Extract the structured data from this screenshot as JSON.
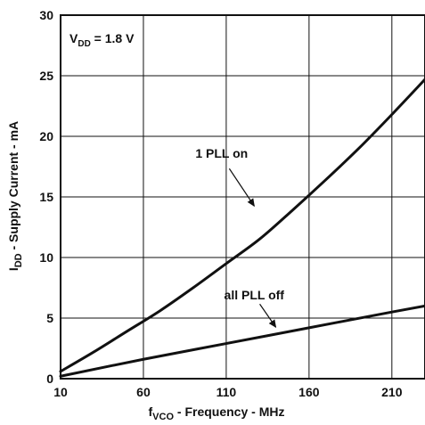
{
  "chart_data": {
    "type": "line",
    "x_ticks": [
      "10",
      "60",
      "110",
      "160",
      "210"
    ],
    "y_ticks": [
      "0",
      "5",
      "10",
      "15",
      "20",
      "25",
      "30"
    ],
    "xlim": [
      10,
      230
    ],
    "ylim": [
      0,
      30
    ],
    "grid": true,
    "xlabel": {
      "main": "f",
      "sub": "VCO",
      "rest": " - Frequency - MHz"
    },
    "ylabel": {
      "main": "I",
      "sub": "DD",
      "rest": " - Supply Current - mA"
    },
    "annotation_box": {
      "main": "V",
      "sub": "DD",
      "rest": " = 1.8 V"
    },
    "series": [
      {
        "name": "1 PLL on",
        "x": [
          10,
          30,
          50,
          70,
          90,
          110,
          130,
          150,
          170,
          190,
          210,
          230
        ],
        "y": [
          0.6,
          2.2,
          3.9,
          5.6,
          7.5,
          9.5,
          11.5,
          13.9,
          16.4,
          19.0,
          21.8,
          24.7
        ]
      },
      {
        "name": "all PLL off",
        "x": [
          10,
          60,
          110,
          160,
          210,
          230
        ],
        "y": [
          0.2,
          1.6,
          2.9,
          4.2,
          5.5,
          6.0
        ]
      }
    ],
    "labels": [
      {
        "text": "1 PLL on",
        "series": 0,
        "at_x": 128,
        "at_y": 14.1
      },
      {
        "text": "all PLL off",
        "series": 1,
        "at_x": 141,
        "at_y": 4.1
      }
    ]
  }
}
